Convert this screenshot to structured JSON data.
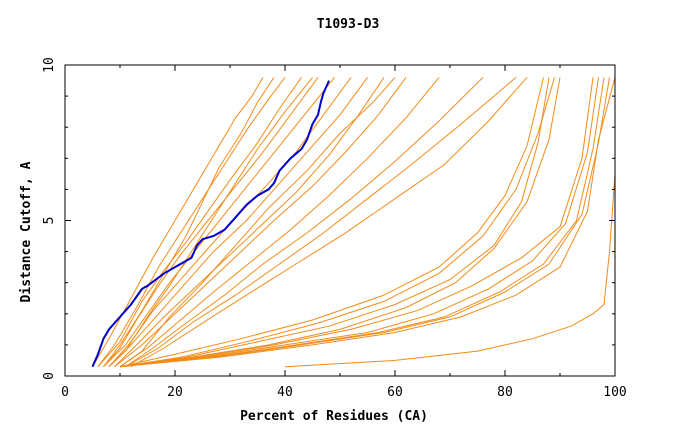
{
  "chart_data": {
    "type": "line",
    "title": "T1093-D3",
    "xlabel": "Percent of Residues (CA)",
    "ylabel": "Distance Cutoff, A",
    "xlim": [
      0,
      100
    ],
    "ylim": [
      0,
      10
    ],
    "xticks": [
      "0",
      "20",
      "40",
      "60",
      "80",
      "100"
    ],
    "yticks": [
      "0",
      "5",
      "10"
    ],
    "grid": false,
    "legend": "none",
    "colors": {
      "background_series": "#f28c1a",
      "highlight_series": "#0000cc",
      "axes": "#000000"
    },
    "highlighted_series": {
      "x": [
        5,
        6,
        7,
        8,
        10,
        12,
        14,
        15,
        18,
        20,
        22,
        23,
        24,
        25,
        27,
        29,
        31,
        33,
        35,
        37,
        38,
        39,
        41,
        43,
        44,
        45,
        46,
        46.5,
        47,
        48
      ],
      "y": [
        0.3,
        0.7,
        1.2,
        1.5,
        1.9,
        2.3,
        2.8,
        2.9,
        3.3,
        3.5,
        3.7,
        3.8,
        4.2,
        4.4,
        4.5,
        4.7,
        5.1,
        5.5,
        5.8,
        6.0,
        6.2,
        6.6,
        7.0,
        7.3,
        7.6,
        8.1,
        8.4,
        8.8,
        9.1,
        9.5
      ]
    },
    "series": [
      {
        "x": [
          5,
          8,
          12,
          16,
          20,
          24,
          28,
          31,
          34,
          36
        ],
        "y": [
          0.3,
          1.2,
          2.5,
          3.8,
          5.0,
          6.2,
          7.4,
          8.3,
          9.0,
          9.6
        ]
      },
      {
        "x": [
          6,
          9,
          13,
          17,
          21,
          25,
          29,
          33,
          37,
          40
        ],
        "y": [
          0.3,
          1.0,
          2.2,
          3.5,
          4.6,
          5.7,
          6.8,
          7.9,
          8.9,
          9.6
        ]
      },
      {
        "x": [
          6,
          10,
          14,
          18,
          22,
          26,
          30,
          35,
          39,
          43
        ],
        "y": [
          0.3,
          1.1,
          2.4,
          3.4,
          4.3,
          5.3,
          6.3,
          7.5,
          8.6,
          9.6
        ]
      },
      {
        "x": [
          7,
          10,
          13,
          17,
          21,
          26,
          31,
          36,
          41,
          46
        ],
        "y": [
          0.3,
          0.9,
          1.8,
          2.9,
          3.9,
          5.0,
          6.1,
          7.2,
          8.4,
          9.6
        ]
      },
      {
        "x": [
          7,
          11,
          15,
          19,
          24,
          29,
          34,
          39,
          44,
          49
        ],
        "y": [
          0.3,
          1.0,
          2.0,
          3.0,
          4.1,
          5.2,
          6.3,
          7.4,
          8.5,
          9.6
        ]
      },
      {
        "x": [
          8,
          12,
          16,
          21,
          26,
          31,
          36,
          42,
          47,
          52
        ],
        "y": [
          0.3,
          1.1,
          2.1,
          3.1,
          4.1,
          5.1,
          6.0,
          7.2,
          8.4,
          9.6
        ]
      },
      {
        "x": [
          8,
          12,
          17,
          22,
          27,
          33,
          38,
          44,
          50,
          55
        ],
        "y": [
          0.3,
          1.0,
          2.0,
          3.0,
          4.0,
          5.0,
          6.0,
          7.2,
          8.4,
          9.6
        ]
      },
      {
        "x": [
          9,
          13,
          18,
          24,
          30,
          36,
          42,
          48,
          53,
          58
        ],
        "y": [
          0.3,
          1.0,
          1.9,
          2.9,
          3.9,
          4.9,
          5.9,
          7.1,
          8.3,
          9.6
        ]
      },
      {
        "x": [
          9,
          14,
          20,
          26,
          32,
          38,
          45,
          51,
          57,
          62
        ],
        "y": [
          0.3,
          1.0,
          2.0,
          3.0,
          4.0,
          5.0,
          6.1,
          7.2,
          8.4,
          9.6
        ]
      },
      {
        "x": [
          10,
          15,
          21,
          27,
          34,
          41,
          48,
          55,
          62,
          68
        ],
        "y": [
          0.3,
          0.9,
          1.8,
          2.7,
          3.7,
          4.7,
          5.8,
          7.0,
          8.3,
          9.6
        ]
      },
      {
        "x": [
          11,
          16,
          22,
          29,
          36,
          44,
          52,
          60,
          68,
          76
        ],
        "y": [
          0.3,
          0.9,
          1.7,
          2.6,
          3.6,
          4.6,
          5.7,
          6.9,
          8.2,
          9.6
        ]
      },
      {
        "x": [
          11,
          17,
          23,
          31,
          39,
          47,
          55,
          63,
          72,
          82
        ],
        "y": [
          0.3,
          0.9,
          1.7,
          2.6,
          3.6,
          4.6,
          5.7,
          6.8,
          8.1,
          9.6
        ]
      },
      {
        "x": [
          12,
          18,
          25,
          33,
          42,
          51,
          60,
          69,
          77,
          84
        ],
        "y": [
          0.3,
          0.9,
          1.7,
          2.6,
          3.6,
          4.6,
          5.7,
          6.8,
          8.2,
          9.6
        ]
      },
      {
        "x": [
          7,
          10,
          14,
          18,
          22,
          25,
          28,
          32,
          35,
          38
        ],
        "y": [
          0.3,
          1.0,
          2.1,
          3.3,
          4.5,
          5.6,
          6.7,
          7.8,
          8.8,
          9.6
        ]
      },
      {
        "x": [
          8,
          11,
          15,
          19,
          23,
          27,
          31,
          35,
          40,
          45
        ],
        "y": [
          0.3,
          0.8,
          1.9,
          2.9,
          4.0,
          5.1,
          6.2,
          7.3,
          8.5,
          9.6
        ]
      },
      {
        "x": [
          10,
          14,
          19,
          25,
          31,
          37,
          44,
          50,
          56,
          60
        ],
        "y": [
          0.3,
          0.8,
          1.9,
          3.0,
          4.2,
          5.4,
          6.6,
          7.8,
          8.8,
          9.6
        ]
      },
      {
        "x": [
          10,
          20,
          32,
          45,
          58,
          68,
          75,
          80,
          84,
          87
        ],
        "y": [
          0.3,
          0.7,
          1.2,
          1.8,
          2.6,
          3.5,
          4.6,
          5.8,
          7.4,
          9.6
        ]
      },
      {
        "x": [
          10,
          22,
          35,
          48,
          60,
          70,
          78,
          83,
          86,
          88
        ],
        "y": [
          0.3,
          0.6,
          1.1,
          1.6,
          2.3,
          3.1,
          4.2,
          5.6,
          7.5,
          9.6
        ]
      },
      {
        "x": [
          10,
          21,
          33,
          46,
          58,
          68,
          76,
          82,
          86,
          89
        ],
        "y": [
          0.3,
          0.6,
          1.1,
          1.7,
          2.4,
          3.3,
          4.5,
          6.0,
          7.8,
          9.6
        ]
      },
      {
        "x": [
          10,
          23,
          37,
          50,
          62,
          71,
          78,
          84,
          88,
          90
        ],
        "y": [
          0.3,
          0.6,
          1.0,
          1.5,
          2.2,
          3.0,
          4.1,
          5.6,
          7.6,
          9.6
        ]
      },
      {
        "x": [
          10,
          24,
          38,
          52,
          64,
          74,
          83,
          90,
          94,
          96
        ],
        "y": [
          0.3,
          0.6,
          1.0,
          1.5,
          2.1,
          2.9,
          3.8,
          4.8,
          7.0,
          9.6
        ]
      },
      {
        "x": [
          10,
          25,
          40,
          55,
          67,
          77,
          85,
          91,
          95,
          97
        ],
        "y": [
          0.3,
          0.6,
          1.0,
          1.4,
          2.0,
          2.8,
          3.7,
          4.9,
          7.2,
          9.6
        ]
      },
      {
        "x": [
          10,
          26,
          42,
          57,
          69,
          79,
          87,
          93,
          96,
          98
        ],
        "y": [
          0.3,
          0.6,
          1.0,
          1.4,
          1.9,
          2.7,
          3.6,
          5.0,
          7.3,
          9.6
        ]
      },
      {
        "x": [
          10,
          27,
          43,
          58,
          70,
          80,
          88,
          94,
          97,
          99
        ],
        "y": [
          0.3,
          0.6,
          1.0,
          1.4,
          1.9,
          2.7,
          3.6,
          5.2,
          7.5,
          9.6
        ]
      },
      {
        "x": [
          10,
          28,
          45,
          60,
          72,
          82,
          90,
          95,
          97,
          100
        ],
        "y": [
          0.3,
          0.6,
          1.0,
          1.4,
          1.9,
          2.6,
          3.5,
          5.3,
          7.6,
          9.6
        ]
      },
      {
        "x": [
          40,
          60,
          75,
          85,
          92,
          96,
          98,
          99,
          100,
          100
        ],
        "y": [
          0.3,
          0.5,
          0.8,
          1.2,
          1.6,
          2.0,
          2.3,
          4.0,
          6.5,
          9.6
        ]
      }
    ]
  }
}
